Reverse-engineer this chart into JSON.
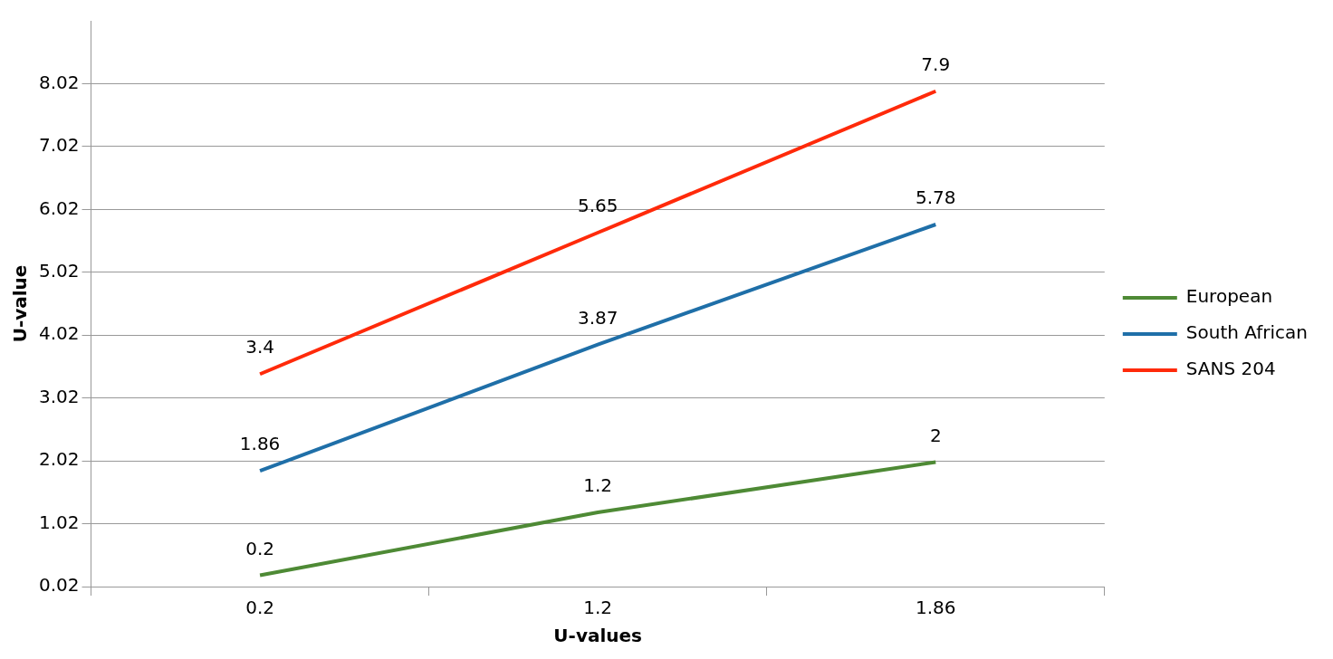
{
  "chart_data": {
    "type": "line",
    "xlabel": "U-values",
    "ylabel": "U-value",
    "categories": [
      "0.2",
      "1.2",
      "1.86"
    ],
    "series": [
      {
        "name": "European",
        "color": "#4e8a35",
        "values": [
          0.2,
          1.2,
          2
        ]
      },
      {
        "name": "South African",
        "color": "#1f6fa8",
        "values": [
          1.86,
          3.87,
          5.78
        ]
      },
      {
        "name": "SANS 204",
        "color": "#ff2a0a",
        "values": [
          3.4,
          5.65,
          7.9
        ]
      }
    ],
    "ylim": [
      0.02,
      9.02
    ],
    "yticks": [
      0.02,
      1.02,
      2.02,
      3.02,
      4.02,
      5.02,
      6.02,
      7.02,
      8.02
    ],
    "grid": "y",
    "legend": "right",
    "marker": "none",
    "line_style": "solid",
    "data_labels": true
  }
}
